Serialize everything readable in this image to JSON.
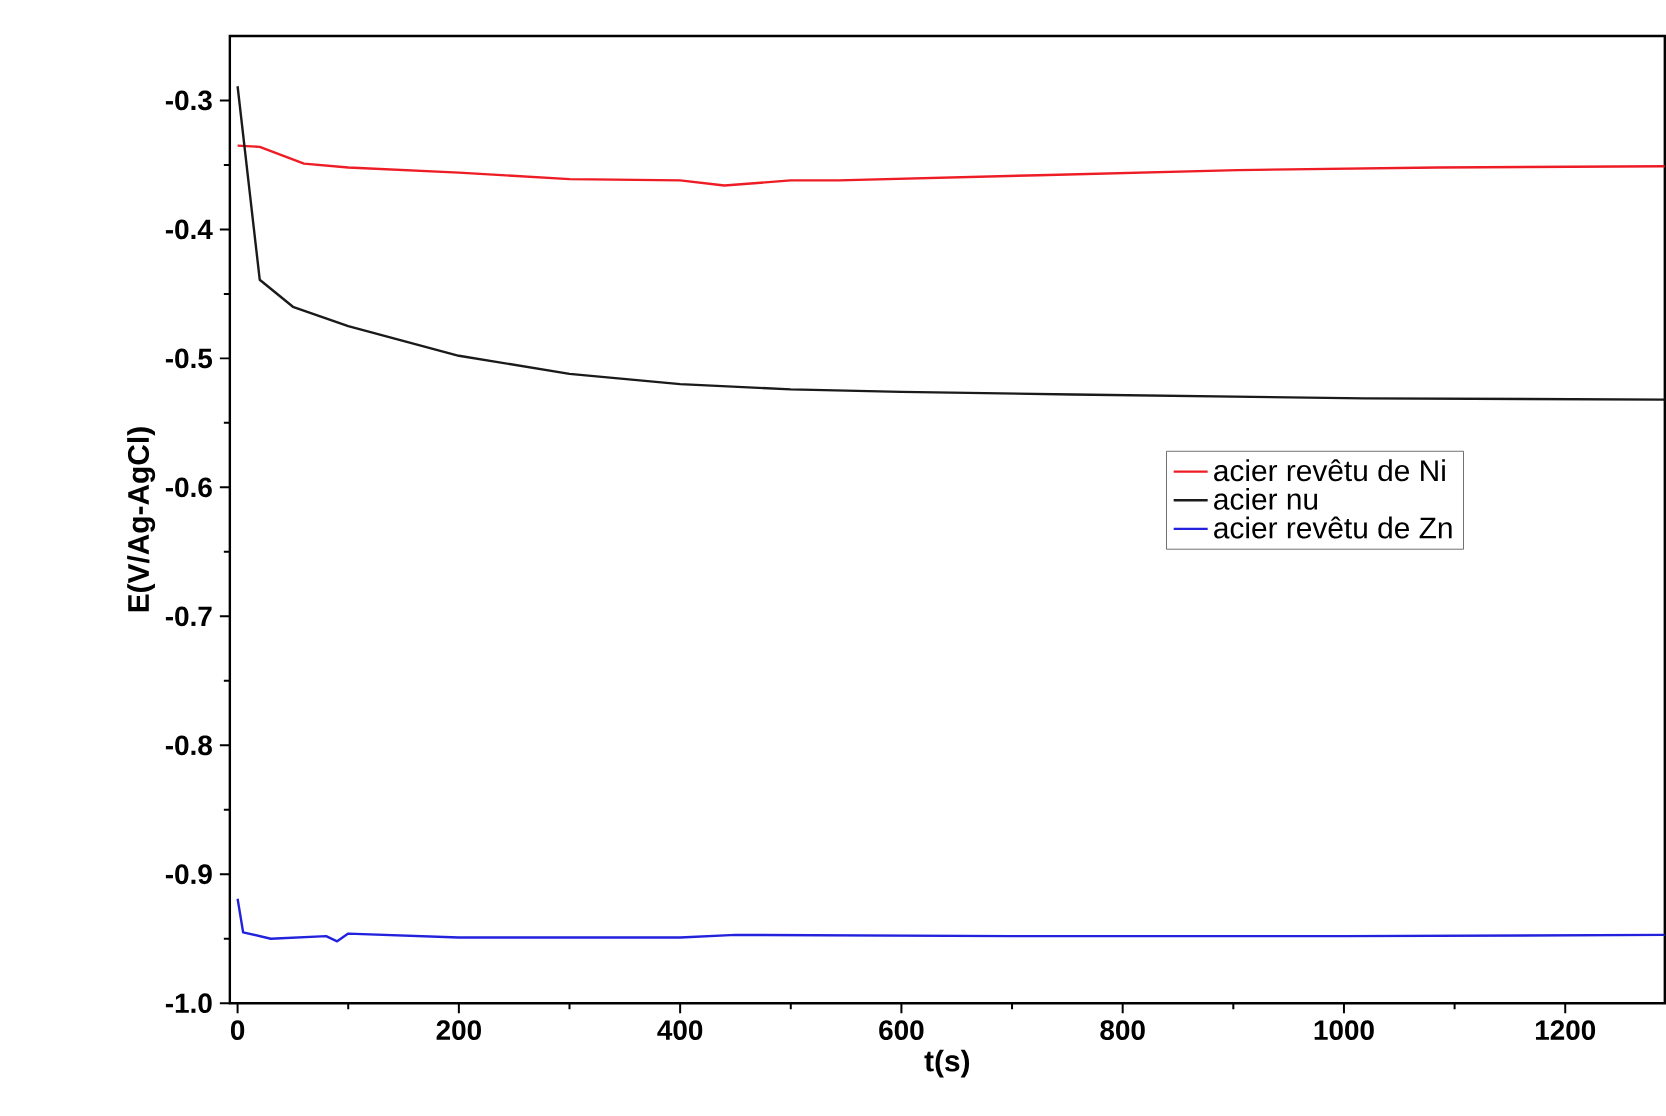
{
  "chart_data": {
    "type": "line",
    "xlabel": "t(s)",
    "ylabel": "E(V/Ag-AgCl)",
    "xlim": [
      -7,
      1290
    ],
    "ylim": [
      -1.0,
      -0.25
    ],
    "xticks": [
      0,
      200,
      400,
      600,
      800,
      1000,
      1200
    ],
    "yticks": [
      {
        "value": -1.0,
        "label": "-1.0"
      },
      -0.9,
      -0.8,
      -0.7,
      -0.6,
      -0.5,
      -0.4,
      -0.3
    ],
    "grid": false,
    "legend": "right",
    "marker": "none",
    "line_style": "solid",
    "series": [
      {
        "name": "acier revêtu de Ni",
        "color": "#ee1c25",
        "x": [
          0,
          20,
          60,
          100,
          200,
          300,
          400,
          440,
          500,
          543,
          724,
          904,
          1085,
          1290
        ],
        "values": [
          -0.335,
          -0.336,
          -0.349,
          -0.352,
          -0.356,
          -0.361,
          -0.362,
          -0.366,
          -0.362,
          -0.362,
          -0.358,
          -0.354,
          -0.352,
          -0.351
        ]
      },
      {
        "name": "acier nu",
        "color": "#1a1a1a",
        "x": [
          0,
          20,
          50,
          100,
          200,
          300,
          400,
          500,
          600,
          755,
          1018,
          1290
        ],
        "values": [
          -0.289,
          -0.439,
          -0.46,
          -0.475,
          -0.498,
          -0.512,
          -0.52,
          -0.524,
          -0.526,
          -0.528,
          -0.531,
          -0.532
        ]
      },
      {
        "name": "acier revêtu de Zn",
        "color": "#2222dd",
        "x": [
          0,
          5,
          30,
          80,
          90,
          100,
          200,
          400,
          450,
          700,
          1000,
          1290
        ],
        "values": [
          -0.919,
          -0.945,
          -0.95,
          -0.948,
          -0.952,
          -0.946,
          -0.949,
          -0.949,
          -0.947,
          -0.948,
          -0.948,
          -0.947
        ]
      }
    ]
  }
}
